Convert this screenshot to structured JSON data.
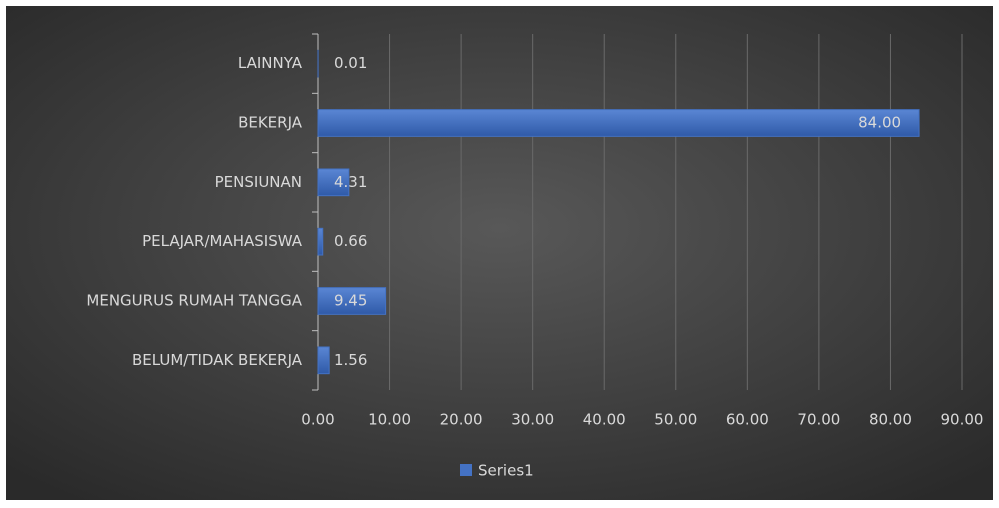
{
  "chart_data": {
    "type": "bar",
    "orientation": "horizontal",
    "categories": [
      "LAINNYA",
      "BEKERJA",
      "PENSIUNAN",
      "PELAJAR/MAHASISWA",
      "MENGURUS RUMAH TANGGA",
      "BELUM/TIDAK BEKERJA"
    ],
    "series": [
      {
        "name": "Series1",
        "color": "#4472c4",
        "values": [
          0.01,
          84.0,
          4.31,
          0.66,
          9.45,
          1.56
        ],
        "value_labels": [
          "0.01",
          "84.00",
          "4.31",
          "0.66",
          "9.45",
          "1.56"
        ]
      }
    ],
    "xlim": [
      0,
      90
    ],
    "xticks": [
      {
        "value": 0,
        "label": "0.00"
      },
      {
        "value": 10,
        "label": "10.00"
      },
      {
        "value": 20,
        "label": "20.00"
      },
      {
        "value": 30,
        "label": "30.00"
      },
      {
        "value": 40,
        "label": "40.00"
      },
      {
        "value": 50,
        "label": "50.00"
      },
      {
        "value": 60,
        "label": "60.00"
      },
      {
        "value": 70,
        "label": "70.00"
      },
      {
        "value": 80,
        "label": "80.00"
      },
      {
        "value": 90,
        "label": "90.00"
      }
    ],
    "grid": true,
    "legend": "bottom"
  }
}
